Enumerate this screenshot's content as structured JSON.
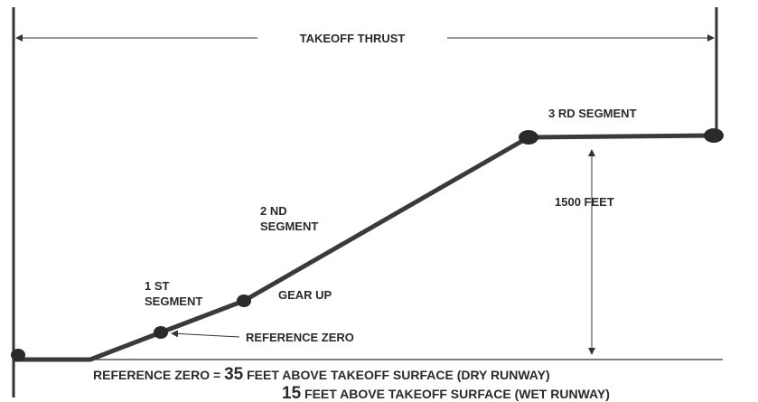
{
  "diagram": {
    "takeoff_thrust": "TAKEOFF THRUST",
    "segment3": "3 RD SEGMENT",
    "height": "1500 FEET",
    "segment2": [
      "2 ND",
      "SEGMENT"
    ],
    "segment1": [
      "1 ST",
      "SEGMENT"
    ],
    "gear_up": "GEAR UP",
    "reference_zero": "REFERENCE ZERO",
    "footer": {
      "line1": {
        "prefix": "REFERENCE ZERO =",
        "number": "35",
        "text": "FEET ABOVE TAKEOFF SURFACE (DRY RUNWAY)"
      },
      "line2": {
        "number": "15",
        "text": "FEET ABOVE TAKEOFF SURFACE (WET RUNWAY)"
      }
    }
  }
}
